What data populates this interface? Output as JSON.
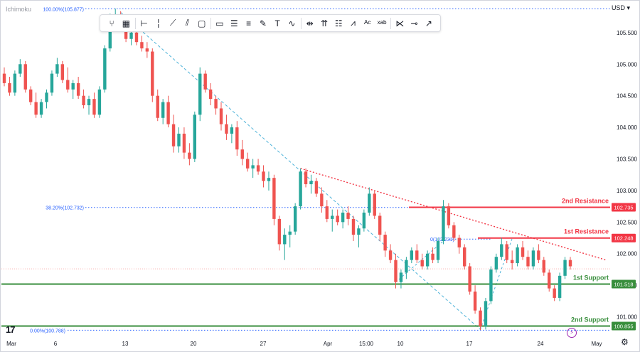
{
  "header": {
    "indicator": "Ichimoku",
    "currency": "USD",
    "currency_caret": "▾"
  },
  "toolbar": {
    "icons": [
      "cursor-fork-icon",
      "grid-icon",
      "horizontal-line-icon",
      "vertical-line-icon",
      "trend-line-icon",
      "parallel-channel-icon",
      "rectangle-icon",
      "callout-icon",
      "fib-retracement-icon",
      "fib-extension-icon",
      "brush-icon",
      "text-icon",
      "path-icon",
      "price-range-icon",
      "long-position-icon",
      "forecast-icon",
      "elliott-wave-icon",
      "abcd-pattern-icon",
      "cypher-pattern-icon",
      "pitchfork-icon",
      "price-note-icon",
      "arrow-icon"
    ],
    "glyphs": [
      "⑂",
      "▦",
      "⊢",
      "╎",
      "⟋",
      "⫽",
      "▢",
      "▭",
      "☰",
      "≡",
      "✎",
      "T",
      "∿",
      "⇹",
      "⇈",
      "☷",
      "⩘",
      "ᴬᶜ",
      "ˣᵃᵇ",
      "⋉",
      "⊸",
      "↗"
    ],
    "text_icon_label": "T",
    "abcd_label": "ᴬᶜ",
    "cypher_label": "ˣᵃᵇ"
  },
  "colors": {
    "up": "#26a69a",
    "down": "#ef5350",
    "support": "#388e3c",
    "resistance": "#f23645",
    "fib": "#2962ff",
    "trend_dotted": "#f23645",
    "trend_dashed": "#4fb3d9"
  },
  "chart_data": {
    "type": "candlestick",
    "title": "",
    "xlabel": "",
    "ylabel": "",
    "ylim": [
      100.725,
      105.96
    ],
    "y_ticks": [
      "105.500",
      "105.000",
      "104.500",
      "104.000",
      "103.500",
      "103.000",
      "102.500",
      "102.000",
      "101.500",
      "101.000"
    ],
    "y_tick_values": [
      105.5,
      105.0,
      104.5,
      104.0,
      103.5,
      103.0,
      102.5,
      102.0,
      101.5,
      101.0
    ],
    "x_ticks": [
      "Mar",
      "6",
      "13",
      "20",
      "27",
      "Apr",
      "15:00",
      "10",
      "17",
      "24",
      "May"
    ],
    "levels": [
      {
        "name": "2nd Resistance",
        "value": 102.735,
        "value_label": "102.735",
        "kind": "resistance"
      },
      {
        "name": "1st Resistance",
        "value": 102.248,
        "value_label": "102.248",
        "kind": "resistance"
      },
      {
        "name": "1st Support",
        "value": 101.518,
        "value_label": "101.518",
        "kind": "support"
      },
      {
        "name": "2nd Support",
        "value": 100.855,
        "value_label": "100.855",
        "kind": "support"
      }
    ],
    "fib_labels": [
      {
        "label": "100.00%(105.877)",
        "value": 105.877
      },
      {
        "label": "38.20%(102.732)",
        "value": 102.732
      },
      {
        "label": "0.00%(100.788)",
        "value": 100.788
      },
      {
        "label": "0(102.231)",
        "value": 102.231
      }
    ],
    "candles": [
      [
        104.85,
        104.95,
        104.65,
        104.7
      ],
      [
        104.7,
        104.8,
        104.5,
        104.55
      ],
      [
        104.55,
        104.9,
        104.5,
        104.85
      ],
      [
        104.85,
        105.08,
        104.8,
        105.0
      ],
      [
        105.0,
        105.05,
        104.55,
        104.6
      ],
      [
        104.6,
        104.65,
        104.35,
        104.4
      ],
      [
        104.4,
        104.55,
        104.15,
        104.2
      ],
      [
        104.2,
        104.45,
        104.15,
        104.4
      ],
      [
        104.4,
        104.6,
        104.3,
        104.55
      ],
      [
        104.55,
        104.9,
        104.5,
        104.85
      ],
      [
        104.85,
        105.1,
        104.8,
        105.0
      ],
      [
        105.0,
        105.05,
        104.7,
        104.75
      ],
      [
        104.75,
        104.95,
        104.55,
        104.6
      ],
      [
        104.6,
        104.75,
        104.45,
        104.7
      ],
      [
        104.7,
        104.8,
        104.45,
        104.5
      ],
      [
        104.5,
        104.6,
        104.3,
        104.35
      ],
      [
        104.35,
        104.5,
        104.2,
        104.45
      ],
      [
        104.45,
        104.55,
        104.15,
        104.2
      ],
      [
        104.2,
        104.65,
        104.15,
        104.6
      ],
      [
        104.6,
        105.3,
        104.55,
        105.25
      ],
      [
        105.25,
        105.8,
        105.2,
        105.7
      ],
      [
        105.7,
        105.88,
        105.6,
        105.78
      ],
      [
        105.78,
        105.84,
        105.55,
        105.6
      ],
      [
        105.6,
        105.7,
        105.35,
        105.4
      ],
      [
        105.4,
        105.55,
        105.3,
        105.5
      ],
      [
        105.5,
        105.6,
        105.3,
        105.35
      ],
      [
        105.35,
        105.45,
        105.2,
        105.25
      ],
      [
        105.25,
        105.35,
        105.1,
        105.2
      ],
      [
        105.2,
        105.25,
        104.4,
        104.5
      ],
      [
        104.5,
        104.6,
        104.1,
        104.15
      ],
      [
        104.15,
        104.45,
        104.05,
        104.4
      ],
      [
        104.4,
        104.5,
        104.0,
        104.05
      ],
      [
        104.05,
        104.2,
        103.6,
        103.7
      ],
      [
        103.7,
        104.0,
        103.6,
        103.9
      ],
      [
        103.9,
        104.0,
        103.5,
        103.6
      ],
      [
        103.6,
        103.75,
        103.4,
        103.5
      ],
      [
        103.5,
        104.25,
        103.45,
        104.2
      ],
      [
        104.2,
        104.95,
        104.1,
        104.85
      ],
      [
        104.85,
        104.9,
        104.55,
        104.6
      ],
      [
        104.6,
        104.7,
        104.35,
        104.45
      ],
      [
        104.45,
        104.5,
        104.2,
        104.3
      ],
      [
        104.3,
        104.4,
        103.95,
        104.05
      ],
      [
        104.05,
        104.2,
        103.8,
        103.9
      ],
      [
        103.9,
        104.05,
        103.75,
        104.0
      ],
      [
        104.0,
        104.1,
        103.55,
        103.65
      ],
      [
        103.65,
        103.8,
        103.4,
        103.5
      ],
      [
        103.5,
        103.6,
        103.3,
        103.35
      ],
      [
        103.35,
        103.5,
        103.2,
        103.4
      ],
      [
        103.4,
        103.5,
        103.25,
        103.3
      ],
      [
        103.3,
        103.4,
        103.05,
        103.15
      ],
      [
        103.15,
        103.3,
        103.0,
        103.2
      ],
      [
        103.2,
        103.25,
        102.45,
        102.55
      ],
      [
        102.55,
        102.6,
        102.05,
        102.15
      ],
      [
        102.15,
        102.4,
        101.9,
        102.3
      ],
      [
        102.3,
        102.45,
        102.1,
        102.35
      ],
      [
        102.35,
        102.8,
        102.3,
        102.75
      ],
      [
        102.75,
        103.35,
        102.7,
        103.3
      ],
      [
        103.3,
        103.35,
        103.05,
        103.1
      ],
      [
        103.1,
        103.25,
        102.95,
        103.15
      ],
      [
        103.15,
        103.2,
        102.9,
        102.95
      ],
      [
        102.95,
        103.05,
        102.65,
        102.75
      ],
      [
        102.75,
        102.85,
        102.5,
        102.55
      ],
      [
        102.55,
        102.7,
        102.35,
        102.6
      ],
      [
        102.6,
        102.7,
        102.45,
        102.5
      ],
      [
        102.5,
        102.7,
        102.4,
        102.65
      ],
      [
        102.65,
        102.75,
        102.45,
        102.55
      ],
      [
        102.55,
        102.6,
        102.2,
        102.3
      ],
      [
        102.3,
        102.45,
        102.1,
        102.4
      ],
      [
        102.4,
        102.7,
        102.35,
        102.65
      ],
      [
        102.65,
        103.05,
        102.6,
        102.95
      ],
      [
        102.95,
        103.0,
        102.55,
        102.6
      ],
      [
        102.6,
        102.65,
        102.2,
        102.3
      ],
      [
        102.3,
        102.35,
        101.95,
        102.05
      ],
      [
        102.05,
        102.15,
        101.85,
        101.9
      ],
      [
        101.9,
        102.0,
        101.45,
        101.55
      ],
      [
        101.55,
        101.75,
        101.45,
        101.7
      ],
      [
        101.7,
        101.95,
        101.6,
        101.9
      ],
      [
        101.9,
        102.1,
        101.85,
        102.05
      ],
      [
        102.05,
        102.15,
        101.85,
        101.9
      ],
      [
        101.9,
        102.0,
        101.75,
        101.8
      ],
      [
        101.8,
        102.05,
        101.75,
        102.0
      ],
      [
        102.0,
        102.1,
        101.85,
        101.9
      ],
      [
        101.9,
        102.25,
        101.85,
        102.2
      ],
      [
        102.2,
        102.85,
        102.15,
        102.75
      ],
      [
        102.75,
        102.8,
        102.4,
        102.45
      ],
      [
        102.45,
        102.5,
        102.2,
        102.25
      ],
      [
        102.25,
        102.3,
        102.0,
        102.1
      ],
      [
        102.1,
        102.15,
        101.75,
        101.8
      ],
      [
        101.8,
        101.85,
        101.35,
        101.4
      ],
      [
        101.4,
        101.5,
        101.05,
        101.1
      ],
      [
        101.1,
        101.15,
        100.79,
        100.85
      ],
      [
        100.85,
        101.3,
        100.8,
        101.25
      ],
      [
        101.25,
        101.8,
        101.2,
        101.75
      ],
      [
        101.75,
        102.0,
        101.7,
        101.95
      ],
      [
        101.95,
        102.25,
        101.9,
        102.15
      ],
      [
        102.15,
        102.2,
        101.85,
        101.9
      ],
      [
        101.9,
        102.05,
        101.75,
        101.85
      ],
      [
        101.85,
        102.15,
        101.8,
        102.1
      ],
      [
        102.1,
        102.2,
        101.9,
        101.95
      ],
      [
        101.95,
        102.05,
        101.75,
        101.8
      ],
      [
        101.8,
        102.1,
        101.75,
        102.05
      ],
      [
        102.05,
        102.15,
        101.85,
        101.9
      ],
      [
        101.9,
        101.95,
        101.65,
        101.7
      ],
      [
        101.7,
        101.75,
        101.4,
        101.45
      ],
      [
        101.45,
        101.5,
        101.25,
        101.3
      ],
      [
        101.3,
        101.7,
        101.25,
        101.65
      ],
      [
        101.65,
        101.95,
        101.6,
        101.9
      ],
      [
        101.9,
        101.95,
        101.75,
        101.8
      ]
    ]
  }
}
